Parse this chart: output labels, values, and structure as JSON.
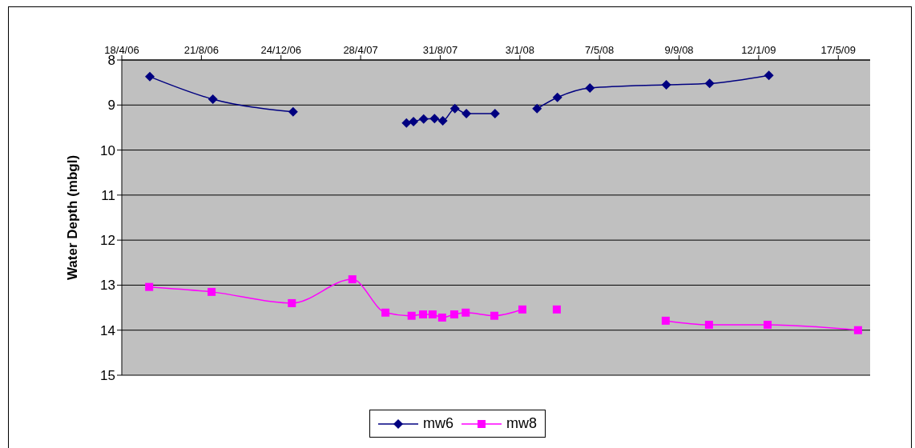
{
  "chart_data": {
    "type": "line",
    "ylabel": "Water Depth (mbgl)",
    "xlim": [
      "2006-04-18",
      "2009-07-06"
    ],
    "xticks": [
      {
        "value": "2006-04-18",
        "label": "18/4/06"
      },
      {
        "value": "2006-08-21",
        "label": "21/8/06"
      },
      {
        "value": "2006-12-24",
        "label": "24/12/06"
      },
      {
        "value": "2007-04-28",
        "label": "28/4/07"
      },
      {
        "value": "2007-08-31",
        "label": "31/8/07"
      },
      {
        "value": "2008-01-03",
        "label": "3/1/08"
      },
      {
        "value": "2008-05-07",
        "label": "7/5/08"
      },
      {
        "value": "2008-09-09",
        "label": "9/9/08"
      },
      {
        "value": "2009-01-12",
        "label": "12/1/09"
      },
      {
        "value": "2009-05-17",
        "label": "17/5/09"
      }
    ],
    "ylim": [
      15,
      8
    ],
    "yticks": [
      8,
      9,
      10,
      11,
      12,
      13,
      14,
      15
    ],
    "grid": "y",
    "legend": "bottom",
    "series": [
      {
        "name": "mw6",
        "color": "#000080",
        "marker": "diamond",
        "x": [
          "2006-06-01",
          "2006-09-08",
          "2007-01-12",
          "2007-04-01",
          "2007-07-09",
          "2007-07-20",
          "2007-08-05",
          "2007-08-22",
          "2007-09-04",
          "2007-09-23",
          "2007-10-11",
          "2007-11-25",
          "2007-12-28",
          "2008-01-30",
          "2008-03-02",
          "2008-04-22",
          "2008-08-20",
          "2008-10-27",
          "2009-01-28"
        ],
        "values": [
          8.37,
          8.87,
          9.15,
          null,
          9.4,
          9.37,
          9.31,
          9.3,
          9.35,
          9.08,
          9.19,
          9.19,
          null,
          9.08,
          8.83,
          8.62,
          8.55,
          8.52,
          8.34
        ]
      },
      {
        "name": "mw8",
        "color": "#ff00ff",
        "marker": "square",
        "x": [
          "2006-05-31",
          "2006-09-06",
          "2007-01-10",
          "2007-04-15",
          "2007-06-06",
          "2007-07-17",
          "2007-08-04",
          "2007-08-19",
          "2007-09-03",
          "2007-09-22",
          "2007-10-10",
          "2007-11-24",
          "2008-01-07",
          "2008-02-05",
          "2008-03-01",
          "2008-06-01",
          "2008-08-19",
          "2008-10-26",
          "2009-01-26",
          "2009-06-17"
        ],
        "values": [
          13.04,
          13.15,
          13.4,
          12.87,
          13.61,
          13.68,
          13.65,
          13.65,
          13.72,
          13.65,
          13.61,
          13.68,
          13.54,
          null,
          13.54,
          null,
          13.79,
          13.88,
          13.88,
          14.0
        ]
      }
    ]
  }
}
